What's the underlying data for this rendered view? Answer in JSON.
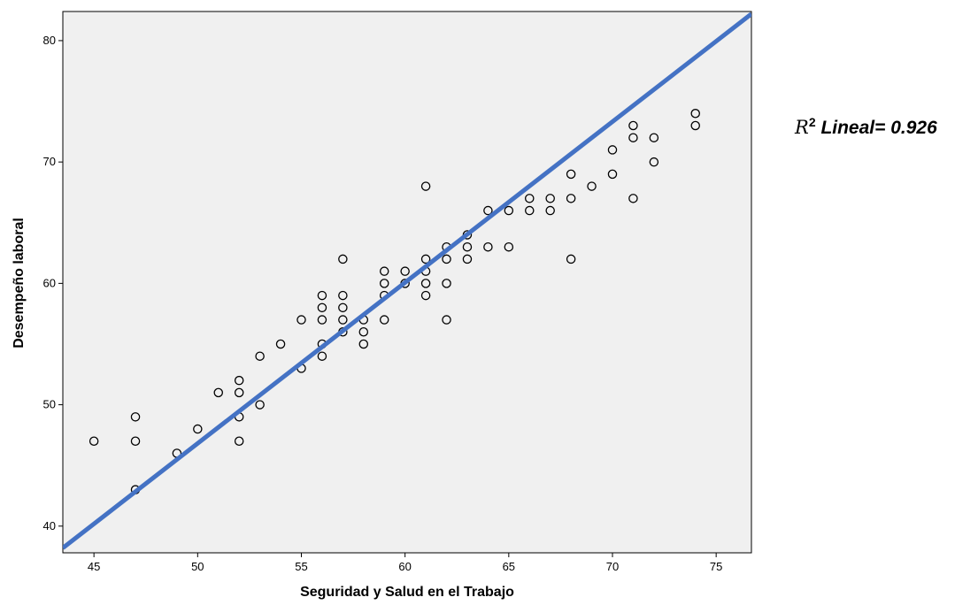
{
  "chart_data": {
    "type": "scatter",
    "xlabel": "Seguridad y Salud en el Trabajo",
    "ylabel": "Desempeño laboral",
    "xlim": [
      43.5,
      76.7
    ],
    "ylim": [
      37.8,
      82.4
    ],
    "xticks": [
      45,
      50,
      55,
      60,
      65,
      70,
      75
    ],
    "yticks": [
      40,
      50,
      60,
      70,
      80
    ],
    "grid": false,
    "background": "#f0f0f0",
    "marker_color": "#000000",
    "fit_line": {
      "color": "#4472c4",
      "type": "linear",
      "points": [
        [
          43.5,
          38.2
        ],
        [
          76.7,
          82.2
        ]
      ]
    },
    "annotation": {
      "symbol": "R",
      "exponent": "2",
      "text": " Lineal= 0.926"
    },
    "points": [
      [
        45,
        47
      ],
      [
        47,
        49
      ],
      [
        47,
        47
      ],
      [
        47,
        43
      ],
      [
        49,
        46
      ],
      [
        50,
        48
      ],
      [
        51,
        51
      ],
      [
        52,
        52
      ],
      [
        52,
        51
      ],
      [
        52,
        49
      ],
      [
        52,
        47
      ],
      [
        53,
        54
      ],
      [
        53,
        50
      ],
      [
        54,
        55
      ],
      [
        55,
        57
      ],
      [
        55,
        53
      ],
      [
        56,
        59
      ],
      [
        56,
        58
      ],
      [
        56,
        57
      ],
      [
        56,
        55
      ],
      [
        56,
        54
      ],
      [
        57,
        62
      ],
      [
        57,
        59
      ],
      [
        57,
        58
      ],
      [
        57,
        57
      ],
      [
        57,
        56
      ],
      [
        58,
        57
      ],
      [
        58,
        56
      ],
      [
        58,
        55
      ],
      [
        59,
        61
      ],
      [
        59,
        60
      ],
      [
        59,
        59
      ],
      [
        59,
        57
      ],
      [
        60,
        61
      ],
      [
        60,
        60
      ],
      [
        61,
        68
      ],
      [
        61,
        62
      ],
      [
        61,
        61
      ],
      [
        61,
        60
      ],
      [
        61,
        59
      ],
      [
        62,
        63
      ],
      [
        62,
        62
      ],
      [
        62,
        60
      ],
      [
        62,
        57
      ],
      [
        63,
        64
      ],
      [
        63,
        63
      ],
      [
        63,
        62
      ],
      [
        64,
        66
      ],
      [
        64,
        63
      ],
      [
        65,
        66
      ],
      [
        65,
        63
      ],
      [
        66,
        67
      ],
      [
        66,
        66
      ],
      [
        67,
        67
      ],
      [
        67,
        66
      ],
      [
        68,
        69
      ],
      [
        68,
        67
      ],
      [
        68,
        62
      ],
      [
        69,
        68
      ],
      [
        70,
        71
      ],
      [
        70,
        69
      ],
      [
        71,
        73
      ],
      [
        71,
        72
      ],
      [
        71,
        67
      ],
      [
        72,
        72
      ],
      [
        72,
        70
      ],
      [
        74,
        74
      ],
      [
        74,
        73
      ]
    ]
  }
}
